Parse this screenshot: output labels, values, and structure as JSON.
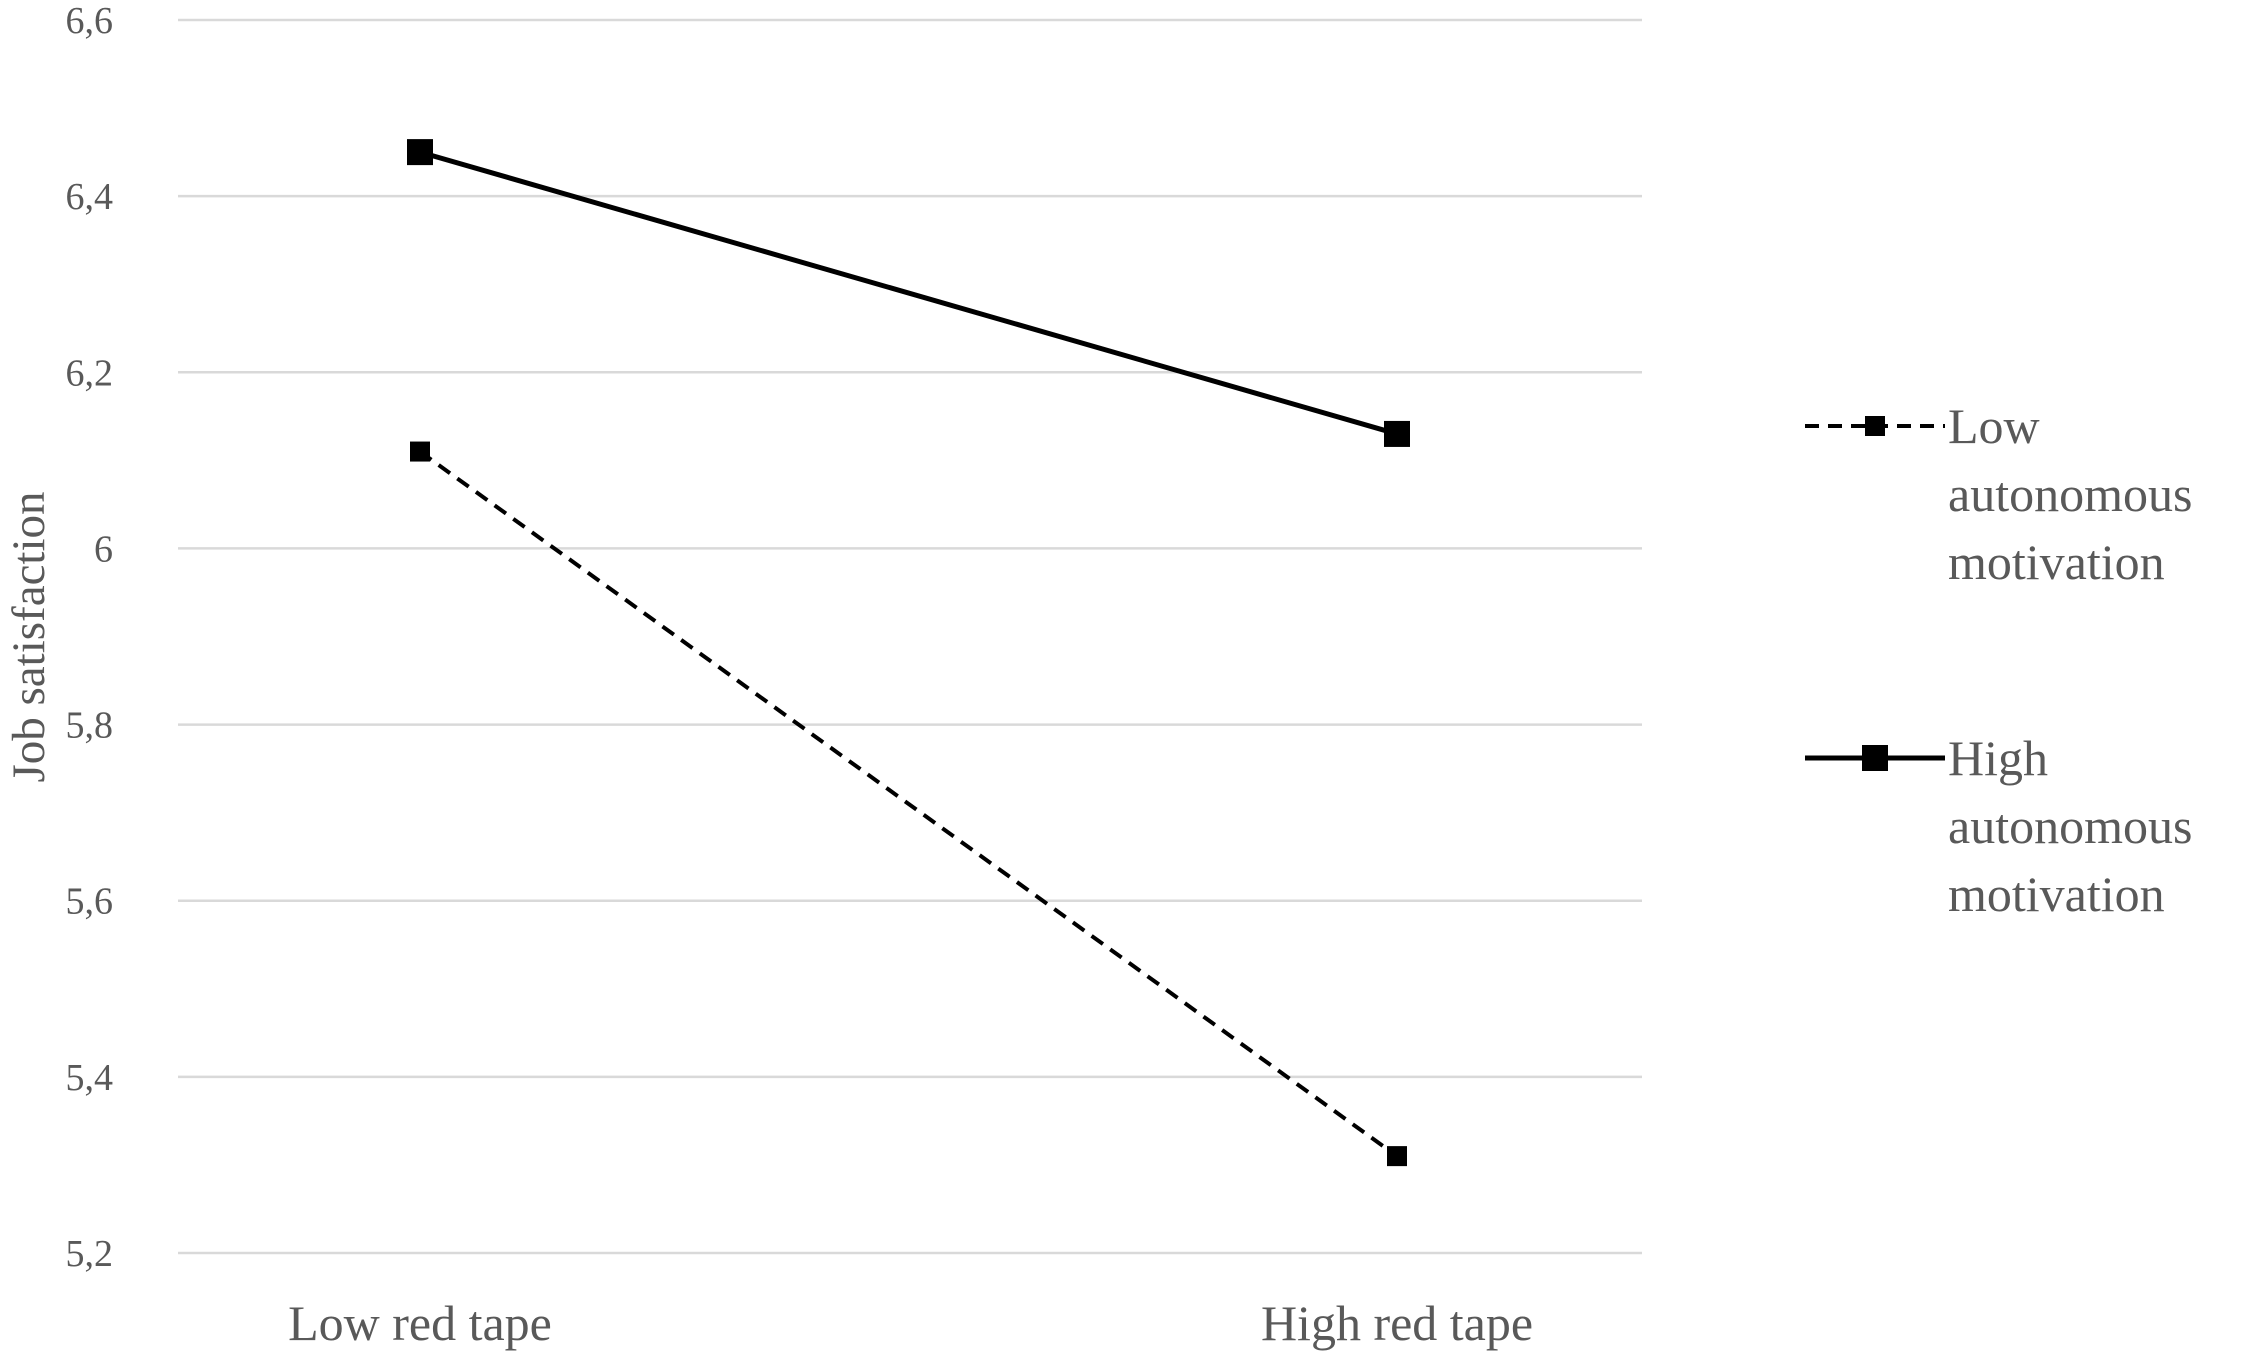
{
  "chart_data": {
    "type": "line",
    "title": "",
    "xlabel": "",
    "ylabel": "Job satisfaction",
    "categories": [
      "Low red tape",
      "High red tape"
    ],
    "ylim": [
      5.2,
      6.6
    ],
    "yticks": [
      "5,2",
      "5,4",
      "5,6",
      "5,8",
      "6",
      "6,2",
      "6,4",
      "6,6"
    ],
    "ytick_values": [
      5.2,
      5.4,
      5.6,
      5.8,
      6.0,
      6.2,
      6.4,
      6.6
    ],
    "grid": true,
    "legend_position": "right",
    "series": [
      {
        "name": "Low autonomous motivation",
        "legend_lines": [
          "Low",
          "autonomous",
          "motivation"
        ],
        "values": [
          6.11,
          5.31
        ],
        "style": "dashed",
        "color": "#000000"
      },
      {
        "name": "High autonomous motivation",
        "legend_lines": [
          "High",
          "autonomous",
          "motivation"
        ],
        "values": [
          6.45,
          6.13
        ],
        "style": "solid",
        "color": "#000000"
      }
    ]
  }
}
